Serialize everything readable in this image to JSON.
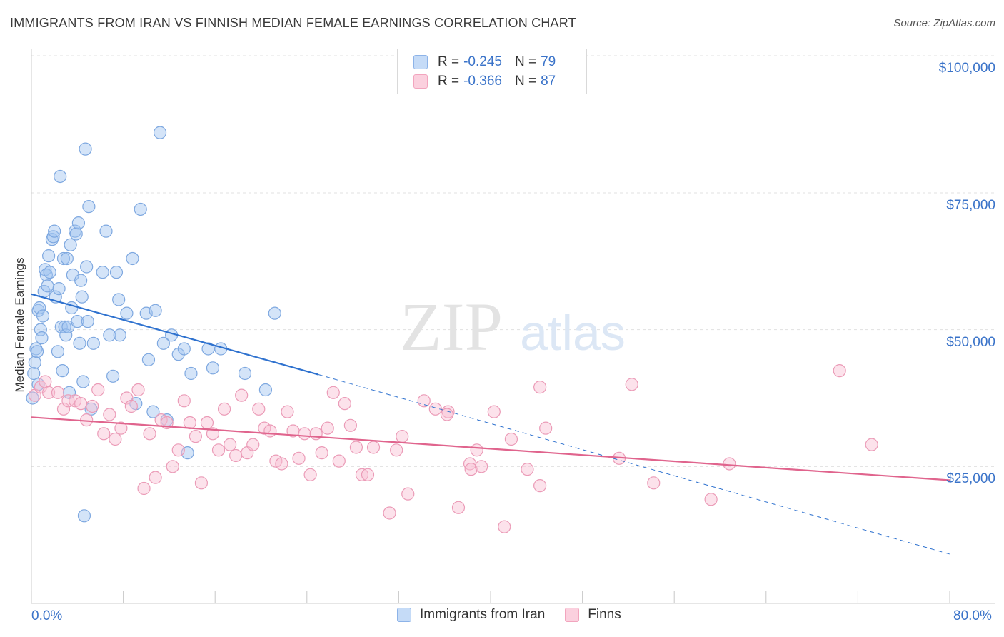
{
  "title": "IMMIGRANTS FROM IRAN VS FINNISH MEDIAN FEMALE EARNINGS CORRELATION CHART",
  "source": "Source: ZipAtlas.com",
  "watermark": {
    "zip": "ZIP",
    "atlas": "atlas"
  },
  "legend_top": [
    {
      "r_label": "R =",
      "r_value": "-0.245",
      "n_label": "N =",
      "n_value": "79"
    },
    {
      "r_label": "R =",
      "r_value": "-0.366",
      "n_label": "N =",
      "n_value": "87"
    }
  ],
  "chart_data": {
    "type": "scatter",
    "title": "IMMIGRANTS FROM IRAN VS FINNISH MEDIAN FEMALE EARNINGS CORRELATION CHART",
    "xlabel": "",
    "ylabel": "Median Female Earnings",
    "xlim": [
      0,
      80
    ],
    "ylim": [
      0,
      105000
    ],
    "x_tick_labels": [
      "0.0%",
      "80.0%"
    ],
    "y_tick_values": [
      25000,
      50000,
      75000,
      100000
    ],
    "y_tick_labels": [
      "$25,000",
      "$50,000",
      "$75,000",
      "$100,000"
    ],
    "grid": true,
    "legend_position": "bottom",
    "colors": {
      "iran": "#8db3e8",
      "iran_line": "#2f72cf",
      "finns": "#f2a5be",
      "finns_line": "#e0648d",
      "axis_text": "#3a73c9"
    },
    "series": [
      {
        "name": "Immigrants from Iran",
        "r": -0.245,
        "n": 79,
        "trend": {
          "x0": 0,
          "y0": 56500,
          "x1": 25,
          "y1": 41800,
          "dashed_to_x": 80,
          "dashed_to_y": 9000
        },
        "points": [
          [
            0.1,
            37500
          ],
          [
            0.2,
            42000
          ],
          [
            0.3,
            44000
          ],
          [
            0.4,
            46500
          ],
          [
            0.5,
            46000
          ],
          [
            0.6,
            53500
          ],
          [
            0.7,
            54000
          ],
          [
            0.8,
            50000
          ],
          [
            0.9,
            48500
          ],
          [
            1.0,
            52500
          ],
          [
            1.1,
            57000
          ],
          [
            1.2,
            61000
          ],
          [
            1.3,
            60000
          ],
          [
            1.4,
            58000
          ],
          [
            1.5,
            63500
          ],
          [
            1.6,
            60500
          ],
          [
            1.8,
            66500
          ],
          [
            1.9,
            67000
          ],
          [
            2.0,
            68000
          ],
          [
            2.1,
            56000
          ],
          [
            2.3,
            46000
          ],
          [
            2.4,
            57500
          ],
          [
            2.5,
            78000
          ],
          [
            2.6,
            50500
          ],
          [
            2.7,
            42500
          ],
          [
            2.8,
            63000
          ],
          [
            2.9,
            50500
          ],
          [
            3.0,
            49000
          ],
          [
            3.1,
            63000
          ],
          [
            3.2,
            50500
          ],
          [
            3.3,
            38500
          ],
          [
            3.4,
            65500
          ],
          [
            3.5,
            54000
          ],
          [
            3.6,
            60000
          ],
          [
            3.8,
            68000
          ],
          [
            3.9,
            67500
          ],
          [
            4.0,
            51500
          ],
          [
            4.1,
            69500
          ],
          [
            4.2,
            47500
          ],
          [
            4.3,
            59000
          ],
          [
            4.4,
            56000
          ],
          [
            4.5,
            40500
          ],
          [
            4.6,
            16000
          ],
          [
            4.7,
            83000
          ],
          [
            4.8,
            61500
          ],
          [
            4.9,
            51500
          ],
          [
            5.0,
            72500
          ],
          [
            5.2,
            35500
          ],
          [
            5.4,
            47500
          ],
          [
            6.2,
            60500
          ],
          [
            6.5,
            68000
          ],
          [
            6.8,
            49000
          ],
          [
            7.1,
            41500
          ],
          [
            7.4,
            60500
          ],
          [
            7.6,
            55500
          ],
          [
            7.7,
            49000
          ],
          [
            8.3,
            53000
          ],
          [
            8.8,
            63000
          ],
          [
            9.1,
            36500
          ],
          [
            9.5,
            72000
          ],
          [
            10.0,
            53000
          ],
          [
            10.2,
            44500
          ],
          [
            10.6,
            35000
          ],
          [
            10.8,
            53500
          ],
          [
            11.2,
            86000
          ],
          [
            11.5,
            47500
          ],
          [
            11.8,
            33500
          ],
          [
            12.2,
            49000
          ],
          [
            12.8,
            45500
          ],
          [
            13.3,
            46500
          ],
          [
            13.6,
            27500
          ],
          [
            13.9,
            42000
          ],
          [
            15.4,
            46500
          ],
          [
            15.8,
            43000
          ],
          [
            16.5,
            46500
          ],
          [
            18.6,
            42000
          ],
          [
            20.4,
            39000
          ],
          [
            21.2,
            53000
          ],
          [
            0.6,
            40000
          ]
        ]
      },
      {
        "name": "Finns",
        "r": -0.366,
        "n": 87,
        "trend": {
          "x0": 0,
          "y0": 34000,
          "x1": 80,
          "y1": 22500
        },
        "points": [
          [
            0.3,
            38000
          ],
          [
            0.8,
            39500
          ],
          [
            1.2,
            40500
          ],
          [
            1.5,
            38500
          ],
          [
            2.3,
            38500
          ],
          [
            2.8,
            35500
          ],
          [
            3.2,
            37000
          ],
          [
            3.8,
            37000
          ],
          [
            4.3,
            36500
          ],
          [
            4.8,
            33500
          ],
          [
            5.3,
            36000
          ],
          [
            5.8,
            39000
          ],
          [
            6.3,
            31000
          ],
          [
            6.8,
            34500
          ],
          [
            7.3,
            30000
          ],
          [
            7.8,
            32000
          ],
          [
            8.3,
            37500
          ],
          [
            8.7,
            36000
          ],
          [
            9.3,
            39000
          ],
          [
            9.8,
            21000
          ],
          [
            10.3,
            31000
          ],
          [
            10.8,
            23000
          ],
          [
            11.3,
            33500
          ],
          [
            11.8,
            33000
          ],
          [
            12.3,
            25000
          ],
          [
            12.8,
            28000
          ],
          [
            13.3,
            37000
          ],
          [
            13.8,
            33000
          ],
          [
            14.3,
            30500
          ],
          [
            14.8,
            22000
          ],
          [
            15.3,
            33000
          ],
          [
            15.8,
            31000
          ],
          [
            16.3,
            28000
          ],
          [
            16.8,
            35500
          ],
          [
            17.3,
            29000
          ],
          [
            17.8,
            27000
          ],
          [
            18.3,
            38000
          ],
          [
            18.8,
            27500
          ],
          [
            19.3,
            29000
          ],
          [
            19.8,
            35500
          ],
          [
            20.3,
            32000
          ],
          [
            20.8,
            31500
          ],
          [
            21.3,
            26000
          ],
          [
            21.8,
            25500
          ],
          [
            22.3,
            35000
          ],
          [
            22.8,
            31500
          ],
          [
            23.3,
            26500
          ],
          [
            23.8,
            31000
          ],
          [
            24.3,
            23500
          ],
          [
            24.8,
            31000
          ],
          [
            25.3,
            27500
          ],
          [
            25.8,
            32000
          ],
          [
            26.3,
            38500
          ],
          [
            26.8,
            26000
          ],
          [
            27.3,
            36500
          ],
          [
            27.8,
            32500
          ],
          [
            28.3,
            28500
          ],
          [
            28.8,
            23500
          ],
          [
            29.3,
            23500
          ],
          [
            29.8,
            28500
          ],
          [
            31.2,
            16500
          ],
          [
            31.8,
            28000
          ],
          [
            32.3,
            30500
          ],
          [
            32.8,
            20000
          ],
          [
            34.2,
            37000
          ],
          [
            35.2,
            35500
          ],
          [
            36.3,
            35000
          ],
          [
            37.2,
            17500
          ],
          [
            38.2,
            25500
          ],
          [
            38.3,
            24500
          ],
          [
            38.8,
            28000
          ],
          [
            39.2,
            25000
          ],
          [
            40.3,
            35000
          ],
          [
            41.2,
            14000
          ],
          [
            41.8,
            30000
          ],
          [
            43.2,
            24500
          ],
          [
            44.3,
            21500
          ],
          [
            44.8,
            32000
          ],
          [
            44.3,
            39500
          ],
          [
            51.2,
            26500
          ],
          [
            52.3,
            40000
          ],
          [
            54.2,
            22000
          ],
          [
            59.2,
            19000
          ],
          [
            60.8,
            25500
          ],
          [
            70.4,
            42500
          ],
          [
            73.2,
            29000
          ],
          [
            36.2,
            34500
          ]
        ]
      }
    ]
  },
  "legend_bottom": [
    {
      "label": "Immigrants from Iran"
    },
    {
      "label": "Finns"
    }
  ]
}
